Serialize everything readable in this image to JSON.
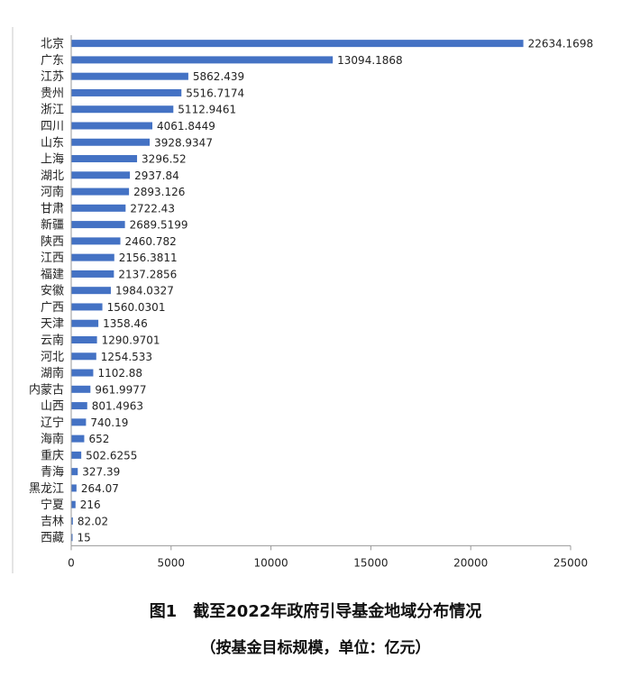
{
  "caption": {
    "line1": "图1　截至2022年政府引导基金地域分布情况",
    "line2": "（按基金目标规模，单位：亿元）"
  },
  "colors": {
    "bar": "#4472c4",
    "axis": "#9a9a9a"
  },
  "chart_data": {
    "type": "bar",
    "orientation": "horizontal",
    "categories": [
      "北京",
      "广东",
      "江苏",
      "贵州",
      "浙江",
      "四川",
      "山东",
      "上海",
      "湖北",
      "河南",
      "甘肃",
      "新疆",
      "陕西",
      "江西",
      "福建",
      "安徽",
      "广西",
      "天津",
      "云南",
      "河北",
      "湖南",
      "内蒙古",
      "山西",
      "辽宁",
      "海南",
      "重庆",
      "青海",
      "黑龙江",
      "宁夏",
      "吉林",
      "西藏"
    ],
    "values": [
      22634.1698,
      13094.1868,
      5862.439,
      5516.7174,
      5112.9461,
      4061.8449,
      3928.9347,
      3296.52,
      2937.84,
      2893.126,
      2722.43,
      2689.5199,
      2460.782,
      2156.3811,
      2137.2856,
      1984.0327,
      1560.0301,
      1358.46,
      1290.9701,
      1254.533,
      1102.88,
      961.9977,
      801.4963,
      740.19,
      652,
      502.6255,
      327.39,
      264.07,
      216,
      82.02,
      15
    ],
    "value_labels": [
      "22634.1698",
      "13094.1868",
      "5862.439",
      "5516.7174",
      "5112.9461",
      "4061.8449",
      "3928.9347",
      "3296.52",
      "2937.84",
      "2893.126",
      "2722.43",
      "2689.5199",
      "2460.782",
      "2156.3811",
      "2137.2856",
      "1984.0327",
      "1560.0301",
      "1358.46",
      "1290.9701",
      "1254.533",
      "1102.88",
      "961.9977",
      "801.4963",
      "740.19",
      "652",
      "502.6255",
      "327.39",
      "264.07",
      "216",
      "82.02",
      "15"
    ],
    "xlim": [
      0,
      25000
    ],
    "xticks": [
      "0",
      "5000",
      "10000",
      "15000",
      "20000",
      "25000"
    ],
    "grid": false,
    "legend": "none"
  }
}
